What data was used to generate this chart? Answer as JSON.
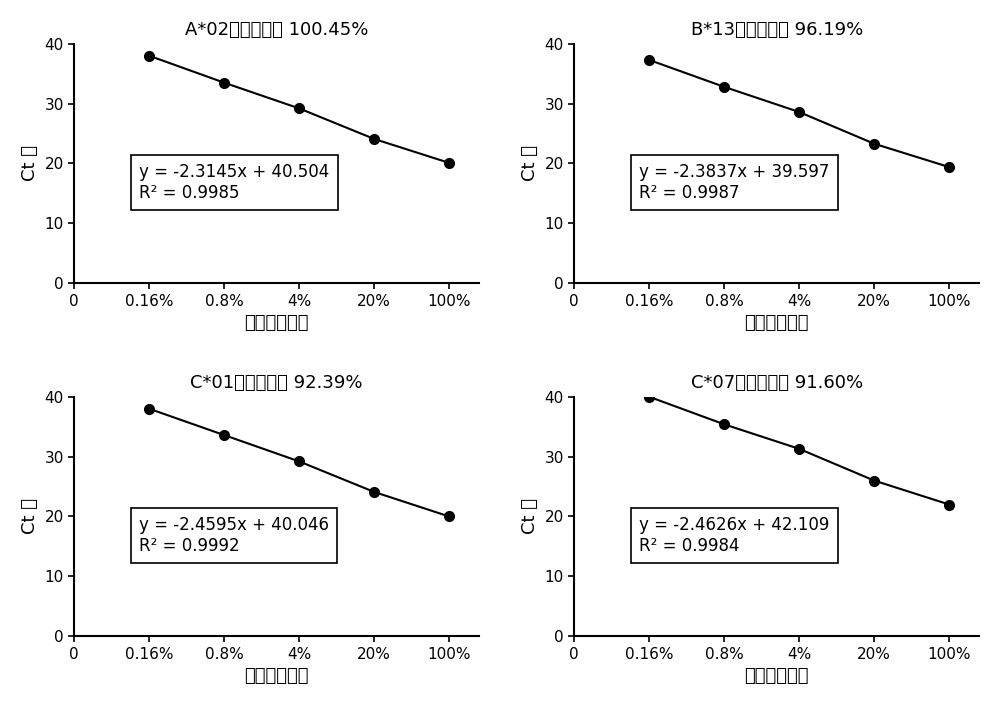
{
  "panels": [
    {
      "title_prefix": "A*02",
      "title_suffix": "扩增效率： 100.45%",
      "equation": "y = -2.3145x + 40.504",
      "r2": "R² = 0.9985",
      "x_values": [
        1,
        2,
        3,
        4,
        5
      ],
      "y_values": [
        38.0,
        33.5,
        29.2,
        24.1,
        20.1
      ]
    },
    {
      "title_prefix": "B*13",
      "title_suffix": "扩增效率： 96.19%",
      "equation": "y = -2.3837x + 39.597",
      "r2": "R² = 0.9987",
      "x_values": [
        1,
        2,
        3,
        4,
        5
      ],
      "y_values": [
        37.3,
        32.8,
        28.6,
        23.3,
        19.4
      ]
    },
    {
      "title_prefix": "C*01",
      "title_suffix": "扩增效率： 92.39%",
      "equation": "y = -2.4595x + 40.046",
      "r2": "R² = 0.9992",
      "x_values": [
        1,
        2,
        3,
        4,
        5
      ],
      "y_values": [
        38.0,
        33.6,
        29.2,
        24.1,
        20.0
      ]
    },
    {
      "title_prefix": "C*07",
      "title_suffix": "扩增效率： 91.60%",
      "equation": "y = -2.4626x + 42.109",
      "r2": "R² = 0.9984",
      "x_values": [
        1,
        2,
        3,
        4,
        5
      ],
      "y_values": [
        40.0,
        35.4,
        31.3,
        26.0,
        22.0
      ]
    }
  ],
  "x_tick_labels": [
    "0",
    "0.16%",
    "0.8%",
    "4%",
    "20%",
    "100%"
  ],
  "ylabel": "Ct 值",
  "xlabel": "阳性样本比例",
  "ylim": [
    0,
    40
  ],
  "yticks": [
    0,
    10,
    20,
    30,
    40
  ],
  "background_color": "#ffffff",
  "line_color": "#000000",
  "marker_color": "#000000",
  "text_color": "#000000",
  "annotation_fontsize": 12,
  "title_fontsize": 13,
  "axis_label_fontsize": 13,
  "tick_fontsize": 11
}
